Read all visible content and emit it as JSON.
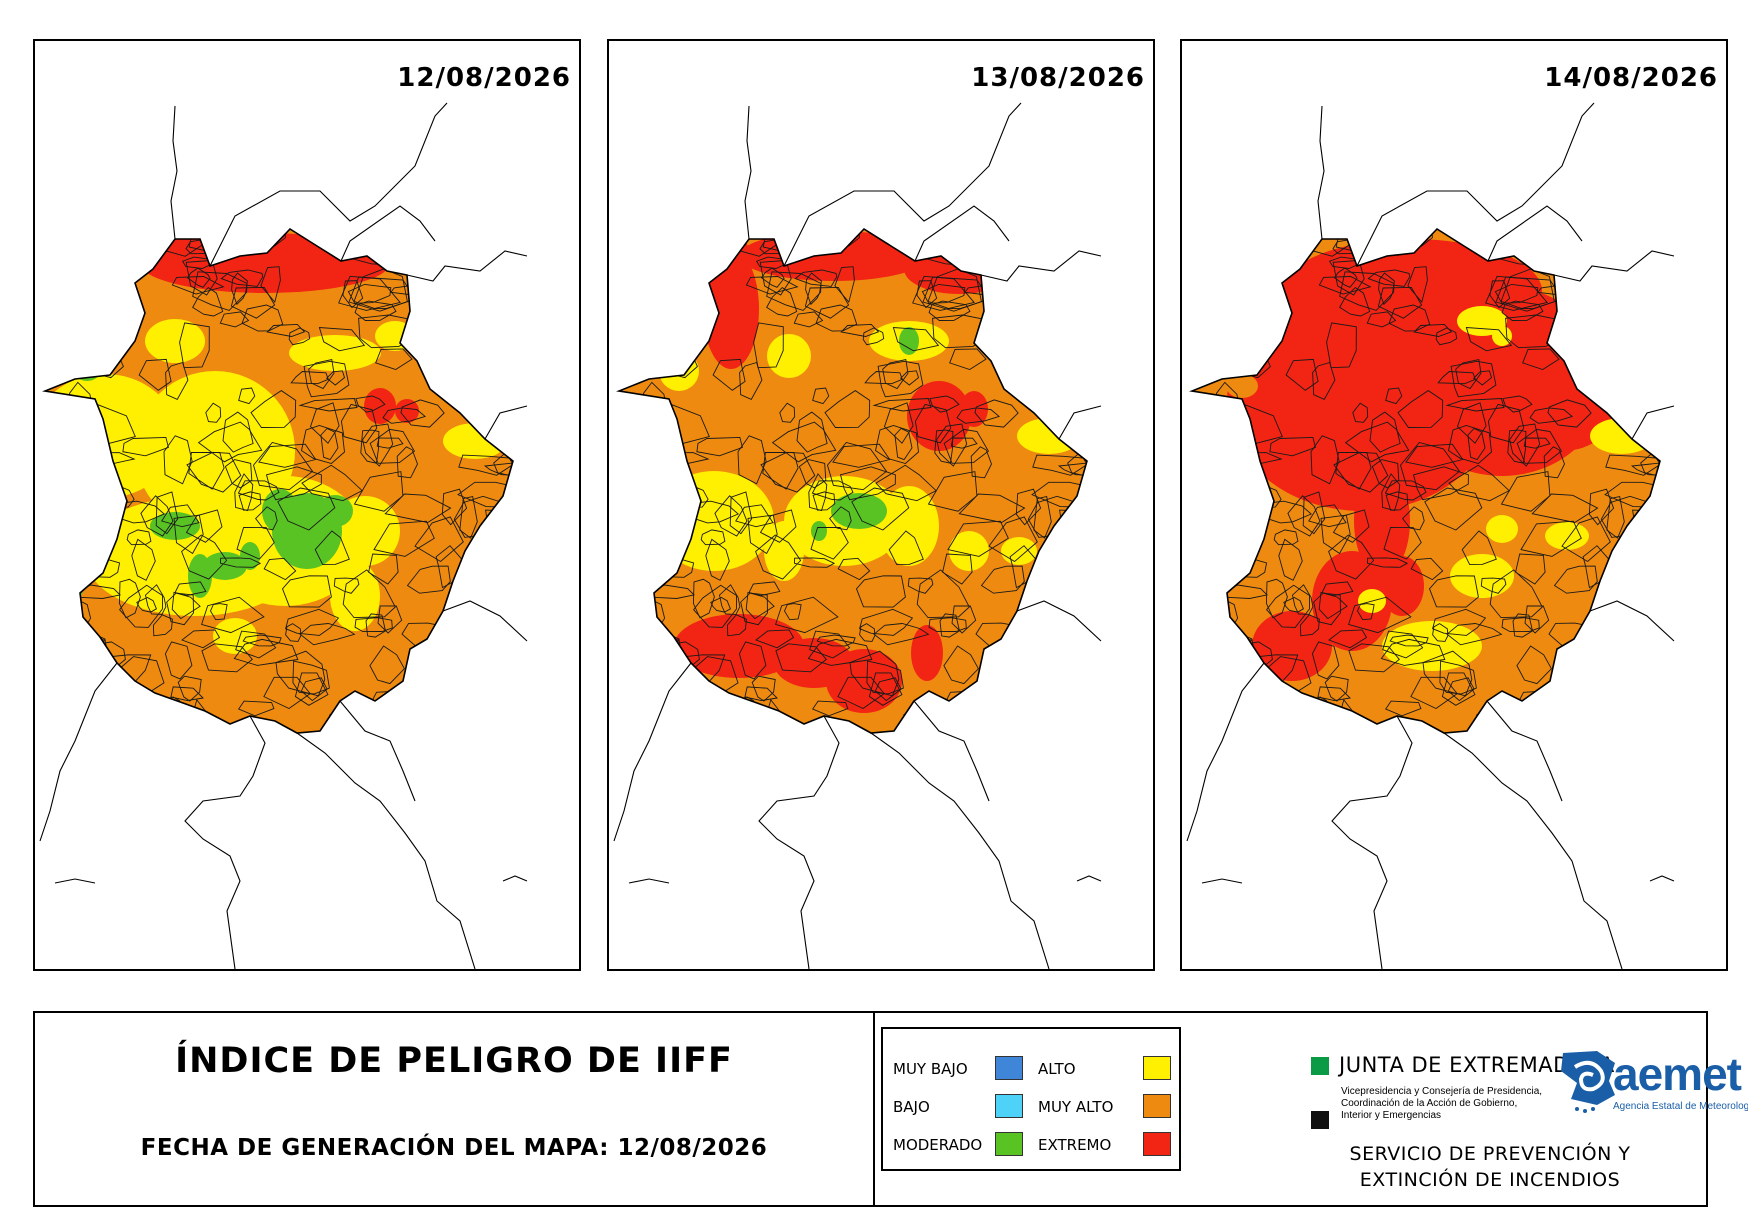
{
  "colors": {
    "muy_bajo": "#3f86d8",
    "bajo": "#4fd2f7",
    "moderado": "#59c324",
    "alto": "#ffef00",
    "muy_alto": "#ee8a10",
    "extremo": "#f22414",
    "border": "#000000"
  },
  "maps": [
    {
      "date": "12/08/2026",
      "scheme": "day1"
    },
    {
      "date": "13/08/2026",
      "scheme": "day2"
    },
    {
      "date": "14/08/2026",
      "scheme": "day3"
    }
  ],
  "footer": {
    "title": "ÍNDICE DE PELIGRO DE IIFF",
    "generation_date": "FECHA DE GENERACIÓN DEL MAPA: 12/08/2026",
    "service_line1": "SERVICIO DE PREVENCIÓN Y",
    "service_line2": "EXTINCIÓN DE INCENDIOS"
  },
  "legend": [
    {
      "label": "MUY BAJO",
      "color": "#3f86d8"
    },
    {
      "label": "BAJO",
      "color": "#4fd2f7"
    },
    {
      "label": "MODERADO",
      "color": "#59c324"
    },
    {
      "label": "ALTO",
      "color": "#ffef00"
    },
    {
      "label": "MUY ALTO",
      "color": "#ee8a10"
    },
    {
      "label": "EXTREMO",
      "color": "#f22414"
    }
  ],
  "logos": {
    "junta_name": "JUNTA DE EXTREMADURA",
    "junta_sub1": "Vicepresidencia y Consejería de Presidencia,",
    "junta_sub2": "Coordinación de la Acción de Gobierno,",
    "junta_sub3": "Interior y Emergencias",
    "aemet_word": "aemet",
    "aemet_sub": "Agencia Estatal de Meteorología"
  }
}
